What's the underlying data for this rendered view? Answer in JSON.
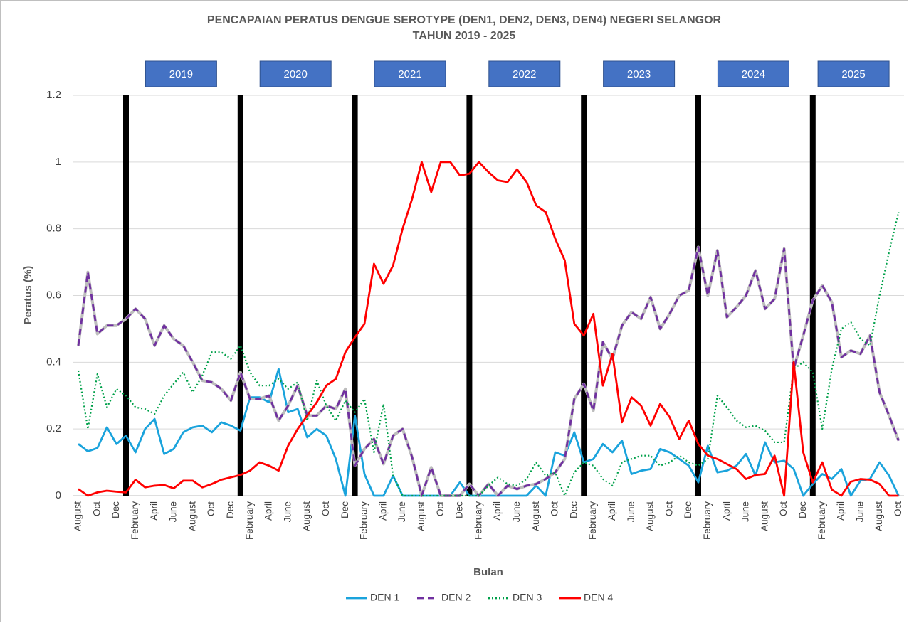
{
  "chart_data": {
    "type": "line",
    "title": [
      "PENCAPAIAN PERATUS DENGUE SEROTYPE (DEN1, DEN2, DEN3, DEN4) NEGERI SELANGOR",
      "TAHUN 2019 - 2025"
    ],
    "x_label": "Bulan",
    "y_label": "Peratus (%)",
    "annotations": [
      "2019",
      "2020",
      "2021",
      "2022",
      "2023",
      "2024",
      "2025"
    ],
    "categories": [
      "August",
      null,
      "Oct",
      null,
      "Dec",
      null,
      "February",
      null,
      "April",
      null,
      "June",
      null,
      "August",
      null,
      "Oct",
      null,
      "Dec",
      null,
      "February",
      null,
      "April",
      null,
      "June",
      null,
      "August",
      null,
      "Oct",
      null,
      "Dec",
      null,
      "February",
      null,
      "April",
      null,
      "June",
      null,
      "August",
      null,
      "Oct",
      null,
      "Dec",
      null,
      "February",
      null,
      "April",
      null,
      "June",
      null,
      "August",
      null,
      "Oct",
      null,
      "Dec",
      null,
      "February",
      null,
      "April",
      null,
      "June",
      null,
      "August",
      null,
      "Oct",
      null,
      "Dec",
      null,
      "February",
      null,
      "April",
      null,
      "June",
      null,
      "August",
      null,
      "Oct",
      null,
      "Dec",
      null,
      "February",
      null,
      "April",
      null,
      "June",
      null,
      "August",
      null,
      "Oct"
    ],
    "series": [
      {
        "name": "DEN 1",
        "color": "#1aa3dc",
        "dash": "solid",
        "values": [
          0.155,
          0.133,
          0.143,
          0.205,
          0.155,
          0.18,
          0.13,
          0.2,
          0.23,
          0.125,
          0.14,
          0.19,
          0.205,
          0.21,
          0.19,
          0.22,
          0.21,
          0.195,
          0.295,
          0.295,
          0.28,
          0.38,
          0.25,
          0.26,
          0.175,
          0.2,
          0.18,
          0.11,
          0.0,
          0.24,
          0.065,
          0.0,
          0.0,
          0.06,
          0.0,
          0.0,
          0.0,
          0.0,
          0.0,
          0.0,
          0.04,
          0.0,
          0.0,
          0.0,
          0.0,
          0.0,
          0.0,
          0.0,
          0.03,
          0.0,
          0.13,
          0.12,
          0.19,
          0.1,
          0.11,
          0.155,
          0.13,
          0.165,
          0.065,
          0.075,
          0.08,
          0.14,
          0.13,
          0.11,
          0.09,
          0.04,
          0.15,
          0.07,
          0.075,
          0.09,
          0.125,
          0.06,
          0.16,
          0.1,
          0.105,
          0.08,
          0.0,
          0.035,
          0.065,
          0.05,
          0.08,
          0.0,
          0.045,
          0.05,
          0.1,
          0.06,
          0.0
        ]
      },
      {
        "name": "DEN 2",
        "color": "#7030a0",
        "dash": "dash",
        "values": [
          0.45,
          0.67,
          0.485,
          0.51,
          0.51,
          0.53,
          0.56,
          0.53,
          0.45,
          0.51,
          0.47,
          0.45,
          0.4,
          0.345,
          0.34,
          0.32,
          0.285,
          0.37,
          0.29,
          0.29,
          0.3,
          0.225,
          0.27,
          0.33,
          0.24,
          0.24,
          0.27,
          0.26,
          0.32,
          0.09,
          0.14,
          0.17,
          0.095,
          0.18,
          0.2,
          0.115,
          0.0,
          0.085,
          0.0,
          0.0,
          0.0,
          0.035,
          0.0,
          0.035,
          0.0,
          0.03,
          0.02,
          0.03,
          0.035,
          0.05,
          0.07,
          0.11,
          0.29,
          0.335,
          0.255,
          0.46,
          0.41,
          0.51,
          0.55,
          0.53,
          0.595,
          0.5,
          0.545,
          0.6,
          0.615,
          0.745,
          0.6,
          0.735,
          0.535,
          0.565,
          0.6,
          0.675,
          0.56,
          0.59,
          0.74,
          0.38,
          0.48,
          0.585,
          0.63,
          0.58,
          0.415,
          0.435,
          0.425,
          0.48,
          0.31,
          0.24,
          0.165
        ]
      },
      {
        "name": "DEN 3",
        "color": "#00a04a",
        "dash": "dot",
        "values": [
          0.375,
          0.2,
          0.365,
          0.265,
          0.32,
          0.3,
          0.265,
          0.26,
          0.245,
          0.3,
          0.335,
          0.37,
          0.31,
          0.36,
          0.43,
          0.43,
          0.41,
          0.45,
          0.37,
          0.33,
          0.33,
          0.35,
          0.32,
          0.34,
          0.225,
          0.345,
          0.27,
          0.225,
          0.285,
          0.25,
          0.29,
          0.13,
          0.275,
          0.06,
          0.0,
          0.0,
          0.0,
          0.0,
          0.0,
          0.0,
          0.0,
          0.0,
          0.0,
          0.03,
          0.055,
          0.035,
          0.03,
          0.05,
          0.1,
          0.06,
          0.07,
          0.0,
          0.07,
          0.1,
          0.09,
          0.05,
          0.03,
          0.1,
          0.11,
          0.12,
          0.12,
          0.09,
          0.1,
          0.12,
          0.1,
          0.09,
          0.11,
          0.3,
          0.265,
          0.225,
          0.205,
          0.21,
          0.195,
          0.16,
          0.16,
          0.38,
          0.4,
          0.37,
          0.2,
          0.38,
          0.5,
          0.52,
          0.47,
          0.45,
          0.6,
          0.73,
          0.85
        ]
      },
      {
        "name": "DEN 4",
        "color": "#ff0000",
        "dash": "solid",
        "values": [
          0.02,
          0.0,
          0.01,
          0.015,
          0.012,
          0.01,
          0.048,
          0.025,
          0.03,
          0.032,
          0.022,
          0.045,
          0.045,
          0.025,
          0.035,
          0.048,
          0.055,
          0.062,
          0.075,
          0.1,
          0.09,
          0.075,
          0.15,
          0.2,
          0.24,
          0.28,
          0.33,
          0.35,
          0.43,
          0.475,
          0.515,
          0.695,
          0.635,
          0.69,
          0.8,
          0.89,
          1.0,
          0.91,
          1.0,
          1.0,
          0.96,
          0.965,
          1.0,
          0.97,
          0.945,
          0.94,
          0.978,
          0.94,
          0.87,
          0.85,
          0.77,
          0.705,
          0.515,
          0.48,
          0.545,
          0.33,
          0.425,
          0.22,
          0.295,
          0.27,
          0.21,
          0.275,
          0.235,
          0.17,
          0.225,
          0.155,
          0.12,
          0.11,
          0.095,
          0.08,
          0.05,
          0.062,
          0.065,
          0.12,
          0.0,
          0.4,
          0.13,
          0.04,
          0.1,
          0.018,
          0.0,
          0.042,
          0.05,
          0.048,
          0.035,
          0.0,
          0.0
        ]
      }
    ],
    "ylim": [
      0,
      1.2
    ],
    "yticks": [
      0,
      0.2,
      0.4,
      0.6,
      0.8,
      1,
      1.2
    ],
    "grid": true,
    "legend": "bottom"
  }
}
